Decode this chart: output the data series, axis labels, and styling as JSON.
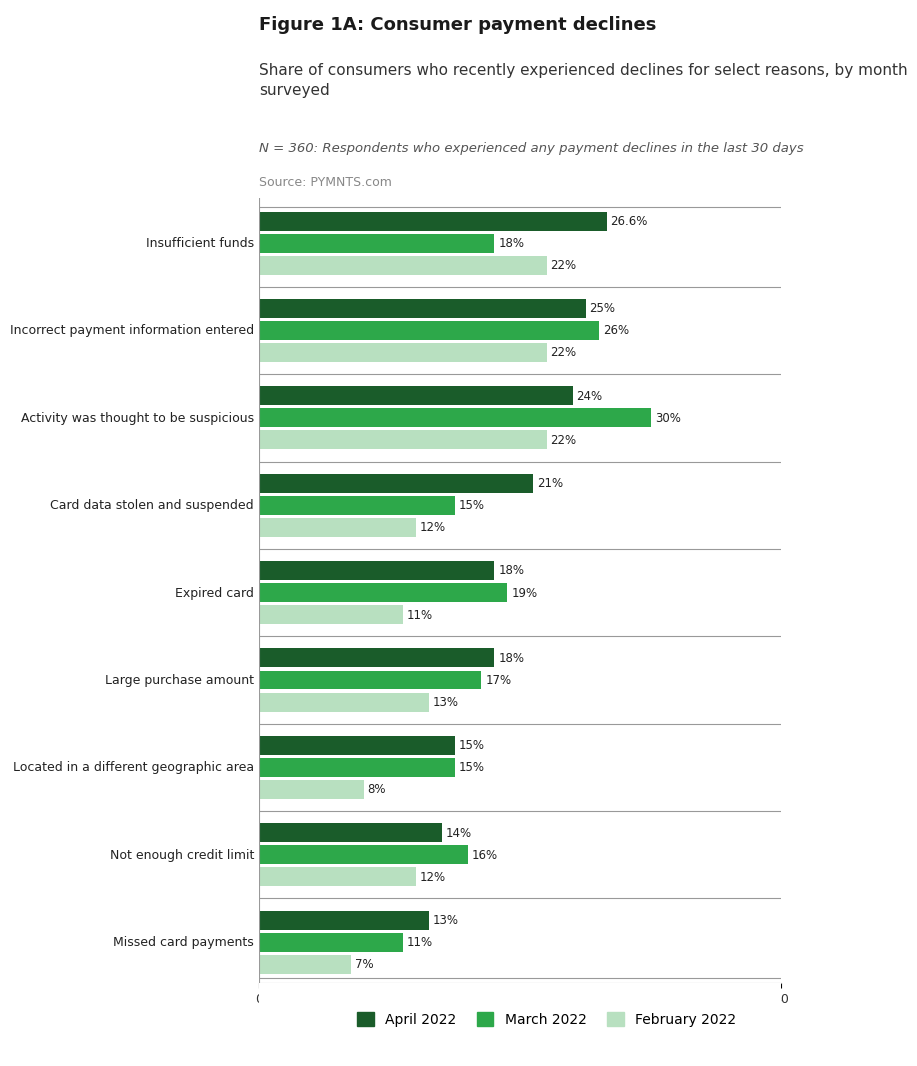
{
  "title": "Figure 1A: Consumer payment declines",
  "subtitle": "Share of consumers who recently experienced declines for select reasons, by month\nsurveyed",
  "note": "N = 360: Respondents who experienced any payment declines in the last 30 days",
  "source": "Source: PYMNTS.com",
  "categories": [
    "Insufficient funds",
    "Incorrect payment information entered",
    "Activity was thought to be suspicious",
    "Card data stolen and suspended",
    "Expired card",
    "Large purchase amount",
    "Located in a different geographic area",
    "Not enough credit limit",
    "Missed card payments"
  ],
  "april_2022": [
    26.6,
    25,
    24,
    21,
    18,
    18,
    15,
    14,
    13
  ],
  "march_2022": [
    18,
    26,
    30,
    15,
    19,
    17,
    15,
    16,
    11
  ],
  "february_2022": [
    22,
    22,
    22,
    12,
    11,
    13,
    8,
    12,
    7
  ],
  "april_labels": [
    "26.6%",
    "25%",
    "24%",
    "21%",
    "18%",
    "18%",
    "15%",
    "14%",
    "13%"
  ],
  "march_labels": [
    "18%",
    "26%",
    "30%",
    "15%",
    "19%",
    "17%",
    "15%",
    "16%",
    "11%"
  ],
  "february_labels": [
    "22%",
    "22%",
    "22%",
    "12%",
    "11%",
    "13%",
    "8%",
    "12%",
    "7%"
  ],
  "color_april": "#1a5c2a",
  "color_march": "#2da84a",
  "color_february": "#b8e0c0",
  "xlim": [
    0,
    40
  ],
  "xticks": [
    0,
    5,
    10,
    15,
    20,
    25,
    30,
    35,
    40
  ],
  "bar_height": 0.25,
  "background_color": "#ffffff",
  "legend_labels": [
    "April 2022",
    "March 2022",
    "February 2022"
  ]
}
